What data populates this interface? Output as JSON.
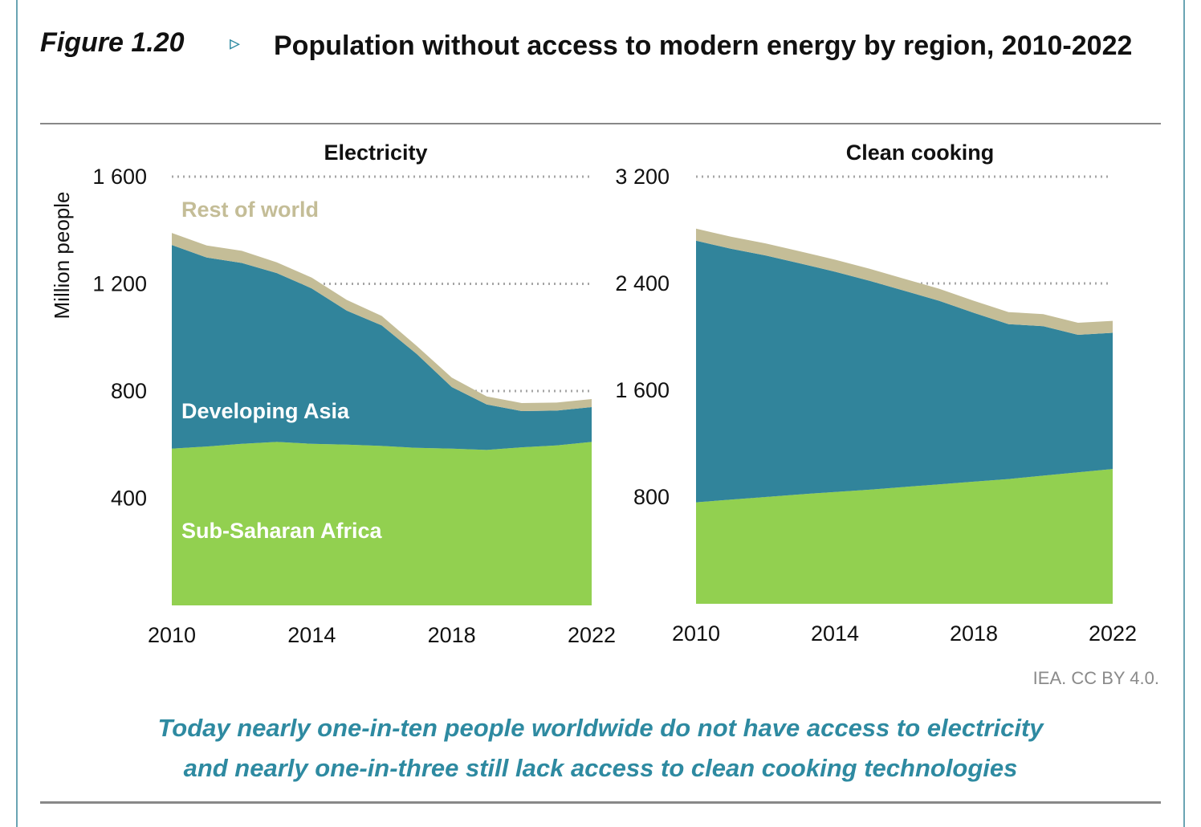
{
  "figure": {
    "label": "Figure 1.20",
    "arrow": "▹",
    "title": "Population without access to modern energy by region, 2010-2022",
    "source": "IEA. CC BY 4.0.",
    "caption_line1": "Today nearly one-in-ten people worldwide do not have access to electricity",
    "caption_line2": "and nearly one-in-three still lack access to clean cooking technologies"
  },
  "colors": {
    "sub_saharan_africa": "#92d050",
    "developing_asia": "#31849b",
    "rest_of_world": "#c4bd97",
    "gridline": "#a6a6a6",
    "caption": "#2e8aa1",
    "frame": "#6aa4b3"
  },
  "chart_data": [
    {
      "type": "area",
      "stacked": true,
      "title": "Electricity",
      "ylabel": "Million people",
      "ylim": [
        0,
        1600
      ],
      "yticks": [
        400,
        800,
        1200,
        1600
      ],
      "ytick_labels": [
        "400",
        "800",
        "1 200",
        "1 600"
      ],
      "xticks": [
        "2010",
        "2014",
        "2018",
        "2022"
      ],
      "grid": "horizontal dotted",
      "x": [
        2010,
        2011,
        2012,
        2013,
        2014,
        2015,
        2016,
        2017,
        2018,
        2019,
        2020,
        2021,
        2022
      ],
      "series": [
        {
          "name": "Sub-Saharan Africa",
          "values": [
            585,
            593,
            603,
            610,
            603,
            600,
            595,
            588,
            585,
            580,
            590,
            597,
            610
          ]
        },
        {
          "name": "Developing Asia",
          "values": [
            760,
            705,
            675,
            630,
            580,
            500,
            450,
            350,
            230,
            170,
            135,
            130,
            130
          ]
        },
        {
          "name": "Rest of world",
          "values": [
            45,
            45,
            45,
            40,
            40,
            40,
            35,
            30,
            35,
            30,
            30,
            30,
            30
          ]
        }
      ]
    },
    {
      "type": "area",
      "stacked": true,
      "title": "Clean cooking",
      "ylim": [
        0,
        3200
      ],
      "yticks": [
        800,
        1600,
        2400,
        3200
      ],
      "ytick_labels": [
        "800",
        "1 600",
        "2 400",
        "3 200"
      ],
      "xticks": [
        "2010",
        "2014",
        "2018",
        "2022"
      ],
      "grid": "horizontal dotted",
      "x": [
        2010,
        2011,
        2012,
        2013,
        2014,
        2015,
        2016,
        2017,
        2018,
        2019,
        2020,
        2021,
        2022
      ],
      "series": [
        {
          "name": "Sub-Saharan Africa",
          "values": [
            760,
            780,
            800,
            820,
            838,
            855,
            875,
            895,
            915,
            935,
            960,
            985,
            1010
          ]
        },
        {
          "name": "Developing Asia",
          "values": [
            1960,
            1880,
            1810,
            1730,
            1650,
            1565,
            1470,
            1375,
            1265,
            1160,
            1120,
            1030,
            1020
          ]
        },
        {
          "name": "Rest of world",
          "values": [
            90,
            90,
            90,
            90,
            90,
            90,
            90,
            90,
            90,
            90,
            90,
            90,
            90
          ]
        }
      ]
    }
  ]
}
